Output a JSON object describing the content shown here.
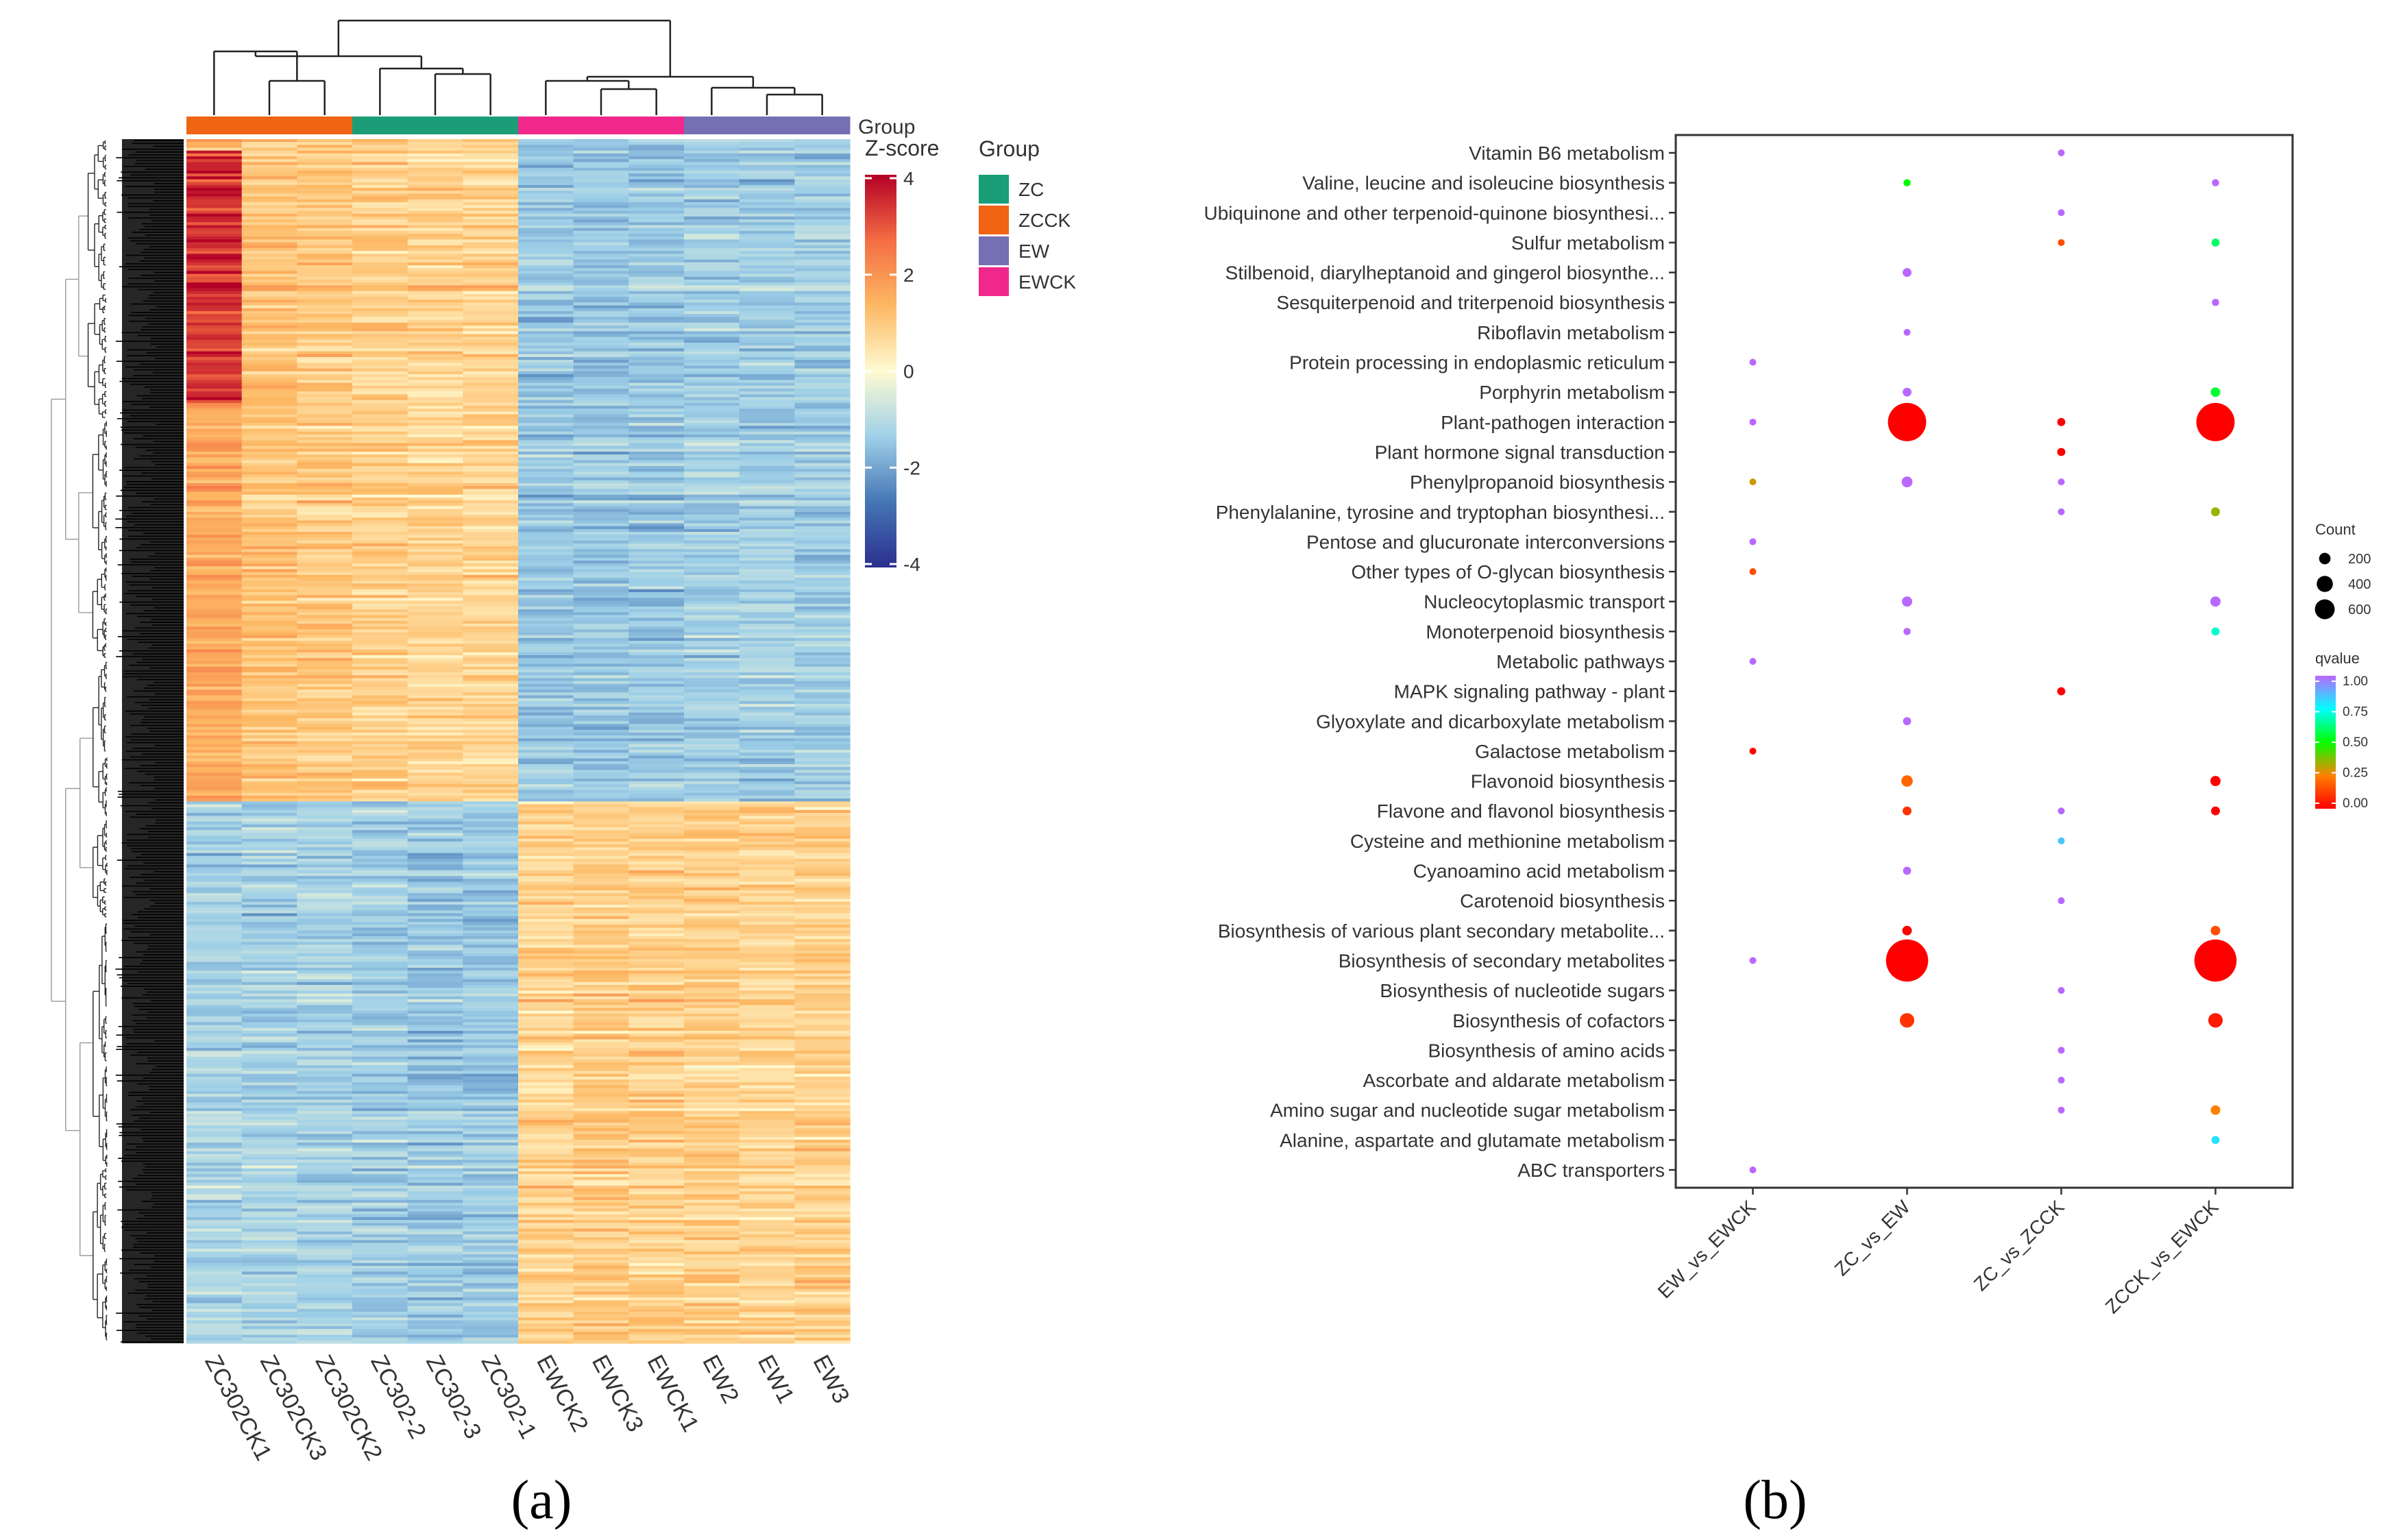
{
  "panel_labels": {
    "a": "(a)",
    "b": "(b)"
  },
  "chart_data": [
    {
      "type": "heatmap",
      "panel": "(a)",
      "columns": [
        "ZC302CK1",
        "ZC302CK3",
        "ZC302CK2",
        "ZC302-2",
        "ZC302-3",
        "ZC302-1",
        "EWCK2",
        "EWCK3",
        "EWCK1",
        "EW2",
        "EW1",
        "EW3"
      ],
      "column_groups": [
        "ZCCK",
        "ZCCK",
        "ZCCK",
        "ZC",
        "ZC",
        "ZC",
        "EWCK",
        "EWCK",
        "EWCK",
        "EW",
        "EW",
        "EW"
      ],
      "group_bar_label": "Group",
      "legend": {
        "title": "Group",
        "items": [
          {
            "label": "ZC",
            "color": "#1b9e77"
          },
          {
            "label": "ZCCK",
            "color": "#f06414"
          },
          {
            "label": "EW",
            "color": "#7570b3"
          },
          {
            "label": "EWCK",
            "color": "#f0288c"
          }
        ]
      },
      "colorbar": {
        "title": "Z-score",
        "ticks": [
          "4",
          "2",
          "0",
          "-2",
          "-4"
        ],
        "range": [
          -4,
          4
        ],
        "colors": [
          "#2b2f8f",
          "#4575b4",
          "#9fd0e8",
          "#fffbd2",
          "#fdb863",
          "#f46d43",
          "#b30026"
        ]
      },
      "row_blocks": [
        {
          "label": "upper cluster (ZC / ZCCK high)",
          "fraction": 0.55,
          "values_by_column": [
            1.6,
            1.1,
            1.0,
            0.9,
            0.8,
            0.8,
            -1.4,
            -1.4,
            -1.4,
            -1.3,
            -1.3,
            -1.3
          ]
        },
        {
          "label": "lower cluster (EW / EWCK high)",
          "fraction": 0.45,
          "values_by_column": [
            -1.2,
            -1.2,
            -1.2,
            -1.3,
            -1.4,
            -1.4,
            0.8,
            1.0,
            0.9,
            0.9,
            0.8,
            0.9
          ]
        }
      ]
    },
    {
      "type": "scatter",
      "panel": "(b)",
      "x_categories": [
        "EW_vs_EWCK",
        "ZC_vs_EW",
        "ZC_vs_ZCCK",
        "ZCCK_vs_EWCK"
      ],
      "y_categories": [
        "Vitamin B6 metabolism",
        "Valine, leucine and isoleucine biosynthesis",
        "Ubiquinone and other terpenoid-quinone biosynthesi...",
        "Sulfur metabolism",
        "Stilbenoid, diarylheptanoid and gingerol biosynthe...",
        "Sesquiterpenoid and triterpenoid biosynthesis",
        "Riboflavin metabolism",
        "Protein processing in endoplasmic reticulum",
        "Porphyrin metabolism",
        "Plant-pathogen interaction",
        "Plant hormone signal transduction",
        "Phenylpropanoid biosynthesis",
        "Phenylalanine, tyrosine and tryptophan biosynthesi...",
        "Pentose and glucuronate interconversions",
        "Other types of O-glycan biosynthesis",
        "Nucleocytoplasmic transport",
        "Monoterpenoid biosynthesis",
        "Metabolic pathways",
        "MAPK signaling pathway - plant",
        "Glyoxylate and dicarboxylate metabolism",
        "Galactose metabolism",
        "Flavonoid biosynthesis",
        "Flavone and flavonol biosynthesis",
        "Cysteine and methionine metabolism",
        "Cyanoamino acid metabolism",
        "Carotenoid biosynthesis",
        "Biosynthesis of various plant secondary metabolite...",
        "Biosynthesis of secondary metabolites",
        "Biosynthesis of nucleotide sugars",
        "Biosynthesis of cofactors",
        "Biosynthesis of amino acids",
        "Ascorbate and aldarate metabolism",
        "Amino sugar and nucleotide sugar metabolism",
        "Alanine, aspartate and glutamate metabolism",
        "ABC transporters"
      ],
      "points": [
        {
          "x": "ZC_vs_ZCCK",
          "y": "Vitamin B6 metabolism",
          "count": 5,
          "qvalue": 1.0
        },
        {
          "x": "ZC_vs_EW",
          "y": "Valine, leucine and isoleucine biosynthesis",
          "count": 20,
          "qvalue": 0.5
        },
        {
          "x": "ZCCK_vs_EWCK",
          "y": "Valine, leucine and isoleucine biosynthesis",
          "count": 20,
          "qvalue": 1.0
        },
        {
          "x": "ZC_vs_ZCCK",
          "y": "Ubiquinone and other terpenoid-quinone biosynthesi...",
          "count": 10,
          "qvalue": 1.0
        },
        {
          "x": "ZC_vs_ZCCK",
          "y": "Sulfur metabolism",
          "count": 15,
          "qvalue": 0.15
        },
        {
          "x": "ZCCK_vs_EWCK",
          "y": "Sulfur metabolism",
          "count": 25,
          "qvalue": 0.6
        },
        {
          "x": "ZC_vs_EW",
          "y": "Stilbenoid, diarylheptanoid and gingerol biosynthe...",
          "count": 30,
          "qvalue": 1.0
        },
        {
          "x": "ZCCK_vs_EWCK",
          "y": "Sesquiterpenoid and triterpenoid biosynthesis",
          "count": 20,
          "qvalue": 1.0
        },
        {
          "x": "ZC_vs_EW",
          "y": "Riboflavin metabolism",
          "count": 15,
          "qvalue": 1.0
        },
        {
          "x": "EW_vs_EWCK",
          "y": "Protein processing in endoplasmic reticulum",
          "count": 5,
          "qvalue": 1.0
        },
        {
          "x": "ZC_vs_EW",
          "y": "Porphyrin metabolism",
          "count": 30,
          "qvalue": 1.0
        },
        {
          "x": "ZCCK_vs_EWCK",
          "y": "Porphyrin metabolism",
          "count": 35,
          "qvalue": 0.55
        },
        {
          "x": "EW_vs_EWCK",
          "y": "Plant-pathogen interaction",
          "count": 5,
          "qvalue": 1.0
        },
        {
          "x": "ZC_vs_EW",
          "y": "Plant-pathogen interaction",
          "count": 560,
          "qvalue": 0.0
        },
        {
          "x": "ZC_vs_ZCCK",
          "y": "Plant-pathogen interaction",
          "count": 25,
          "qvalue": 0.0
        },
        {
          "x": "ZCCK_vs_EWCK",
          "y": "Plant-pathogen interaction",
          "count": 560,
          "qvalue": 0.0
        },
        {
          "x": "ZC_vs_ZCCK",
          "y": "Plant hormone signal transduction",
          "count": 25,
          "qvalue": 0.0
        },
        {
          "x": "EW_vs_EWCK",
          "y": "Phenylpropanoid biosynthesis",
          "count": 10,
          "qvalue": 0.3
        },
        {
          "x": "ZC_vs_EW",
          "y": "Phenylpropanoid biosynthesis",
          "count": 45,
          "qvalue": 1.0
        },
        {
          "x": "ZC_vs_ZCCK",
          "y": "Phenylpropanoid biosynthesis",
          "count": 10,
          "qvalue": 1.0
        },
        {
          "x": "ZC_vs_ZCCK",
          "y": "Phenylalanine, tyrosine and tryptophan biosynthesi...",
          "count": 5,
          "qvalue": 1.0
        },
        {
          "x": "ZCCK_vs_EWCK",
          "y": "Phenylalanine, tyrosine and tryptophan biosynthesi...",
          "count": 30,
          "qvalue": 0.35
        },
        {
          "x": "EW_vs_EWCK",
          "y": "Pentose and glucuronate interconversions",
          "count": 5,
          "qvalue": 1.0
        },
        {
          "x": "EW_vs_EWCK",
          "y": "Other types of O-glycan biosynthesis",
          "count": 5,
          "qvalue": 0.15
        },
        {
          "x": "ZC_vs_EW",
          "y": "Nucleocytoplasmic transport",
          "count": 40,
          "qvalue": 1.0
        },
        {
          "x": "ZCCK_vs_EWCK",
          "y": "Nucleocytoplasmic transport",
          "count": 40,
          "qvalue": 1.0
        },
        {
          "x": "ZC_vs_EW",
          "y": "Monoterpenoid biosynthesis",
          "count": 20,
          "qvalue": 1.0
        },
        {
          "x": "ZCCK_vs_EWCK",
          "y": "Monoterpenoid biosynthesis",
          "count": 25,
          "qvalue": 0.7
        },
        {
          "x": "EW_vs_EWCK",
          "y": "Metabolic pathways",
          "count": 10,
          "qvalue": 1.0
        },
        {
          "x": "ZC_vs_ZCCK",
          "y": "MAPK signaling pathway - plant",
          "count": 25,
          "qvalue": 0.0
        },
        {
          "x": "ZC_vs_EW",
          "y": "Glyoxylate and dicarboxylate metabolism",
          "count": 25,
          "qvalue": 1.0
        },
        {
          "x": "EW_vs_EWCK",
          "y": "Galactose metabolism",
          "count": 10,
          "qvalue": 0.0
        },
        {
          "x": "ZC_vs_EW",
          "y": "Flavonoid biosynthesis",
          "count": 50,
          "qvalue": 0.2
        },
        {
          "x": "ZCCK_vs_EWCK",
          "y": "Flavonoid biosynthesis",
          "count": 40,
          "qvalue": 0.0
        },
        {
          "x": "ZC_vs_EW",
          "y": "Flavone and flavonol biosynthesis",
          "count": 30,
          "qvalue": 0.1
        },
        {
          "x": "ZC_vs_ZCCK",
          "y": "Flavone and flavonol biosynthesis",
          "count": 5,
          "qvalue": 1.0
        },
        {
          "x": "ZCCK_vs_EWCK",
          "y": "Flavone and flavonol biosynthesis",
          "count": 30,
          "qvalue": 0.0
        },
        {
          "x": "ZC_vs_ZCCK",
          "y": "Cysteine and methionine metabolism",
          "count": 10,
          "qvalue": 0.85
        },
        {
          "x": "ZC_vs_EW",
          "y": "Cyanoamino acid metabolism",
          "count": 25,
          "qvalue": 1.0
        },
        {
          "x": "ZC_vs_ZCCK",
          "y": "Carotenoid biosynthesis",
          "count": 5,
          "qvalue": 1.0
        },
        {
          "x": "ZC_vs_EW",
          "y": "Biosynthesis of various plant secondary metabolite...",
          "count": 35,
          "qvalue": 0.0
        },
        {
          "x": "ZCCK_vs_EWCK",
          "y": "Biosynthesis of various plant secondary metabolite...",
          "count": 35,
          "qvalue": 0.15
        },
        {
          "x": "EW_vs_EWCK",
          "y": "Biosynthesis of secondary metabolites",
          "count": 5,
          "qvalue": 1.0
        },
        {
          "x": "ZC_vs_EW",
          "y": "Biosynthesis of secondary metabolites",
          "count": 680,
          "qvalue": 0.0
        },
        {
          "x": "ZCCK_vs_EWCK",
          "y": "Biosynthesis of secondary metabolites",
          "count": 680,
          "qvalue": 0.0
        },
        {
          "x": "ZC_vs_ZCCK",
          "y": "Biosynthesis of nucleotide sugars",
          "count": 5,
          "qvalue": 1.0
        },
        {
          "x": "ZC_vs_EW",
          "y": "Biosynthesis of cofactors",
          "count": 80,
          "qvalue": 0.1
        },
        {
          "x": "ZCCK_vs_EWCK",
          "y": "Biosynthesis of cofactors",
          "count": 80,
          "qvalue": 0.05
        },
        {
          "x": "ZC_vs_ZCCK",
          "y": "Biosynthesis of amino acids",
          "count": 10,
          "qvalue": 1.0
        },
        {
          "x": "ZC_vs_ZCCK",
          "y": "Ascorbate and aldarate metabolism",
          "count": 10,
          "qvalue": 1.0
        },
        {
          "x": "ZC_vs_ZCCK",
          "y": "Amino sugar and nucleotide sugar metabolism",
          "count": 10,
          "qvalue": 1.0
        },
        {
          "x": "ZCCK_vs_EWCK",
          "y": "Amino sugar and nucleotide sugar metabolism",
          "count": 35,
          "qvalue": 0.25
        },
        {
          "x": "ZCCK_vs_EWCK",
          "y": "Alanine, aspartate and glutamate metabolism",
          "count": 25,
          "qvalue": 0.8
        },
        {
          "x": "EW_vs_EWCK",
          "y": "ABC transporters",
          "count": 5,
          "qvalue": 1.0
        }
      ],
      "size_legend": {
        "title": "Count",
        "ticks": [
          200,
          400,
          600
        ]
      },
      "color_legend": {
        "title": "qvalue",
        "ticks": [
          "1.00",
          "0.75",
          "0.50",
          "0.25",
          "0.00"
        ],
        "range": [
          0,
          1
        ],
        "colors": [
          "#ff0000",
          "#ff8000",
          "#00ff00",
          "#00ffff",
          "#b968ff"
        ]
      }
    }
  ]
}
